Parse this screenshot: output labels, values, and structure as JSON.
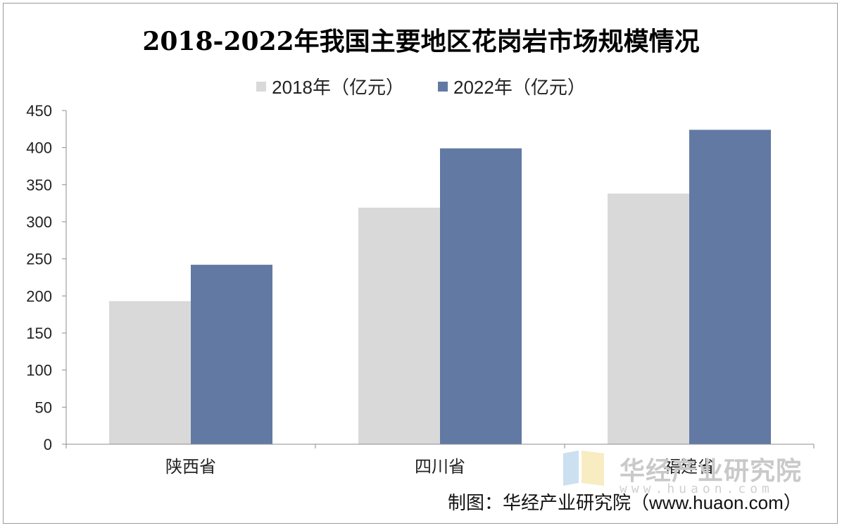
{
  "chart_data": {
    "type": "bar",
    "title": "2018-2022年我国主要地区花岗岩市场规模情况",
    "categories": [
      "陕西省",
      "四川省",
      "福建省"
    ],
    "series": [
      {
        "name": "2018年（亿元）",
        "values": [
          193,
          319,
          338
        ],
        "color": "#d9d9d9"
      },
      {
        "name": "2022年（亿元）",
        "values": [
          242,
          399,
          424
        ],
        "color": "#6279a3"
      }
    ],
    "ylim": [
      0,
      450
    ],
    "yticks": [
      0,
      50,
      100,
      150,
      200,
      250,
      300,
      350,
      400,
      450
    ],
    "legend_position": "top-center",
    "grid": false
  },
  "watermark": {
    "text": "华经产业研究院",
    "url": "www.huaon.com"
  },
  "source": "制图：华经产业研究院（www.huaon.com）"
}
